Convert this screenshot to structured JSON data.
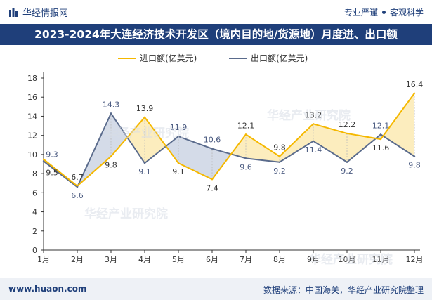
{
  "header": {
    "brand": "华经情报网",
    "brand_icon": "bar-logo-icon",
    "tagline_left": "专业严谨",
    "tagline_right": "客观科学"
  },
  "title": "2023-2024年大连经济技术开发区（境内目的地/货源地）月度进、出口额",
  "footer": {
    "website": "www.huaon.com",
    "source": "数据来源：中国海关，华经产业研究院整理"
  },
  "watermark": {
    "text": "华经产业研究院",
    "url": "www.huaon.com"
  },
  "colors": {
    "header_bg": "#1f3f7a",
    "import": "#f5b800",
    "export": "#5a6b8c",
    "import_fill": "#fbe7a8",
    "export_fill": "#c6cfe0"
  },
  "chart_data": {
    "type": "line",
    "title": "",
    "xlabel": "",
    "ylabel": "",
    "categories": [
      "1月",
      "2月",
      "3月",
      "4月",
      "5月",
      "6月",
      "7月",
      "8月",
      "9月",
      "10月",
      "11月",
      "12月"
    ],
    "series": [
      {
        "name": "进口额(亿美元)",
        "values": [
          9.5,
          6.7,
          9.8,
          13.9,
          9.1,
          7.4,
          12.1,
          9.8,
          13.2,
          12.2,
          11.6,
          16.4
        ]
      },
      {
        "name": "出口额(亿美元)",
        "values": [
          9.3,
          6.6,
          14.3,
          9.1,
          11.9,
          10.6,
          9.6,
          9.2,
          11.4,
          9.2,
          12.1,
          9.8
        ]
      }
    ],
    "ylim": [
      0,
      18
    ],
    "yticks": [
      0,
      2,
      4,
      6,
      8,
      10,
      12,
      14,
      16,
      18
    ],
    "legend_position": "top-center",
    "grid": false
  }
}
